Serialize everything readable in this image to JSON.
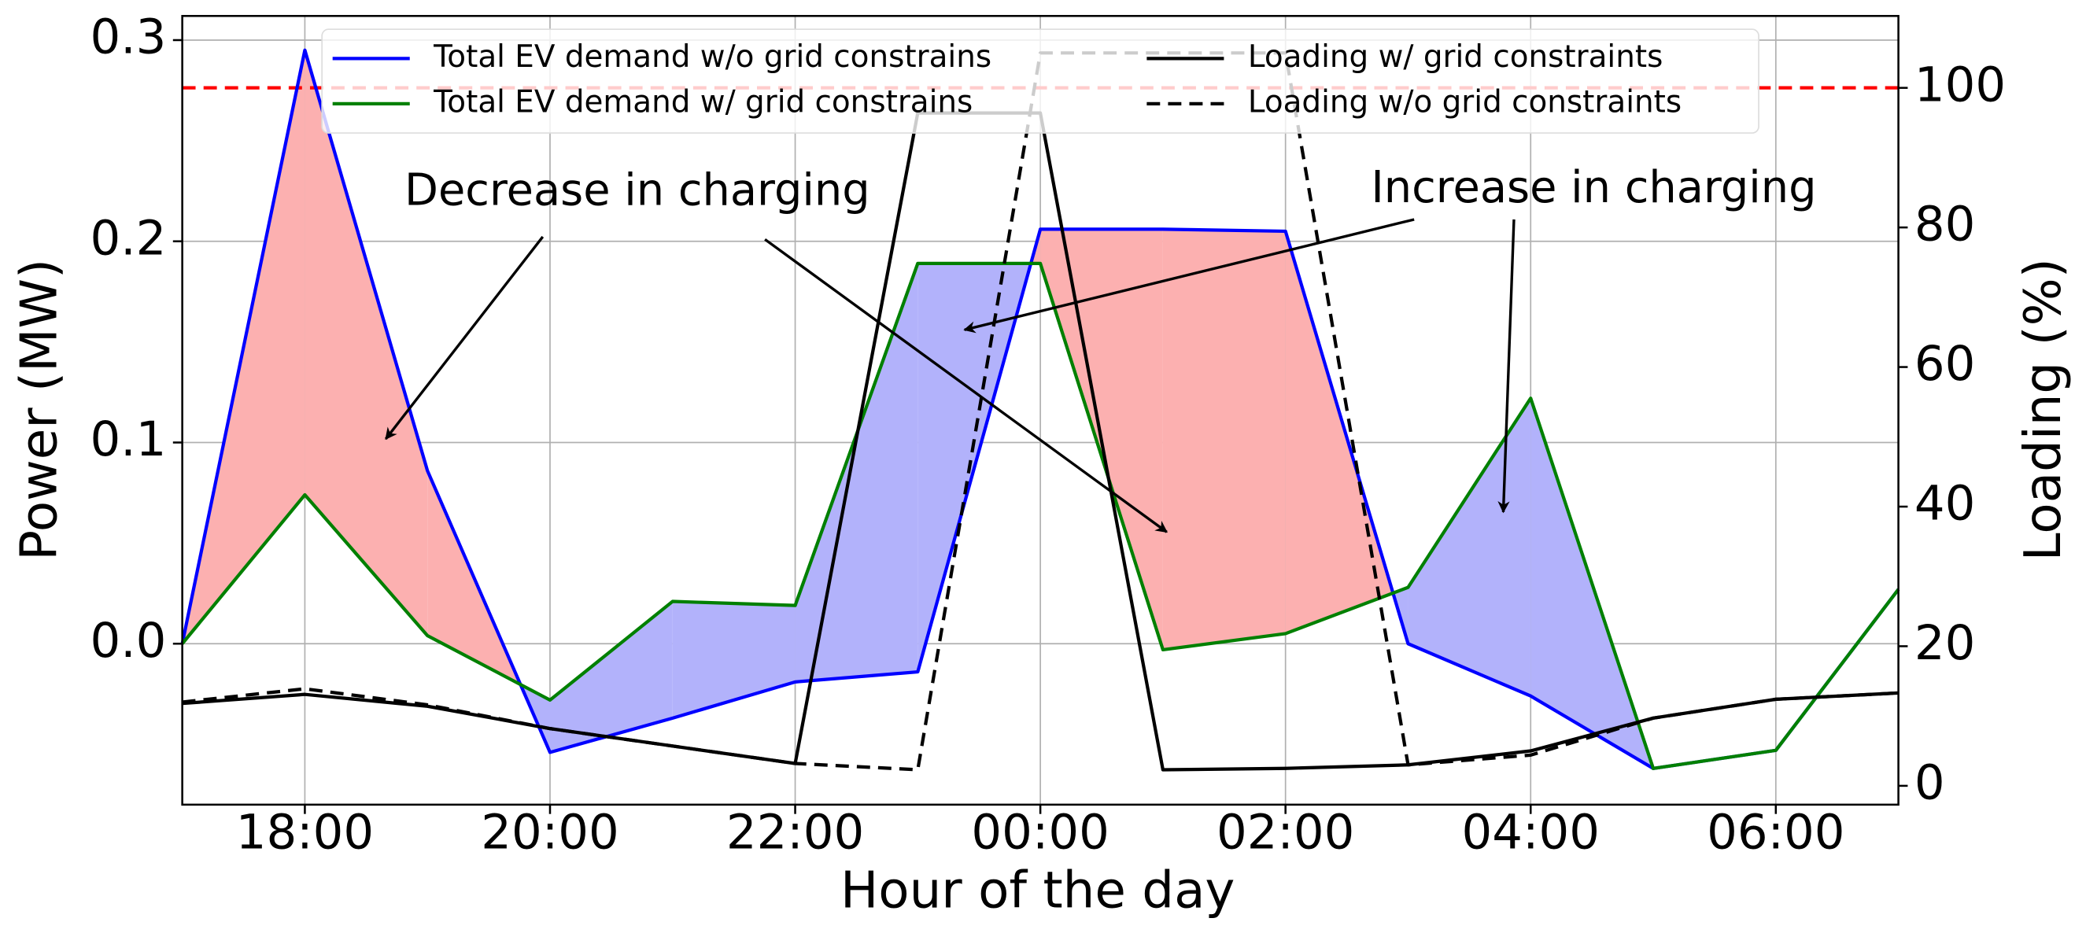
{
  "chart_data": {
    "type": "line",
    "x_label": "Hour of the day",
    "y_label": "Power (MW)",
    "y2_label": "Loading (%)",
    "x": [
      17,
      18,
      19,
      20,
      21,
      22,
      23,
      24,
      25,
      26,
      27,
      28,
      29,
      30,
      31
    ],
    "xlim": [
      17,
      31
    ],
    "xticks": [
      {
        "value": 18,
        "label": "18:00"
      },
      {
        "value": 20,
        "label": "20:00"
      },
      {
        "value": 22,
        "label": "22:00"
      },
      {
        "value": 24,
        "label": "00:00"
      },
      {
        "value": 26,
        "label": "02:00"
      },
      {
        "value": 28,
        "label": "04:00"
      },
      {
        "value": 30,
        "label": "06:00"
      }
    ],
    "ylim": [
      -0.08,
      0.312
    ],
    "yticks": [
      {
        "value": 0,
        "label": "0.0"
      },
      0.1,
      0.2,
      0.3
    ],
    "y2lim": [
      -2.7,
      110.3
    ],
    "y2ticks": [
      0,
      20,
      40,
      60,
      80,
      100
    ],
    "grid": true,
    "legend": "upper center",
    "series": [
      {
        "name": "Total EV demand w/o grid constrains",
        "color": "#0000ff",
        "style": "solid",
        "values": [
          0.0,
          0.295,
          0.086,
          -0.054,
          -0.037,
          -0.019,
          -0.014,
          0.206,
          0.206,
          0.205,
          0.0,
          -0.026,
          -0.062,
          -0.053,
          0.027
        ]
      },
      {
        "name": "Total EV demand w/ grid constrains",
        "color": "#008000",
        "style": "solid",
        "values": [
          0.0,
          0.074,
          0.004,
          -0.028,
          0.021,
          0.019,
          0.189,
          0.189,
          -0.003,
          0.005,
          0.028,
          0.122,
          -0.062,
          -0.053,
          0.027
        ]
      },
      {
        "name": "Loading w/ grid constraints",
        "color": "#000000",
        "style": "solid",
        "axis": "y2",
        "values": [
          11.8,
          13.1,
          11.4,
          8.2,
          5.7,
          3.2,
          96.4,
          96.4,
          2.3,
          2.5,
          3.0,
          5.0,
          9.7,
          12.4,
          13.3
        ]
      },
      {
        "name": "Loading w/o grid constraints",
        "color": "#000000",
        "style": "dashed",
        "axis": "y2",
        "values": [
          12.0,
          13.9,
          11.6,
          8.2,
          5.7,
          3.2,
          2.3,
          105,
          105,
          105,
          3.0,
          4.4,
          9.7,
          12.4,
          13.3
        ]
      }
    ],
    "fill_between": {
      "series": [
        0,
        1
      ],
      "above_color": "#fcb0b0",
      "below_color": "#b2b2fb"
    },
    "reference_line": {
      "value": 100,
      "axis": "y2",
      "color": "#ff0000",
      "style": "dashed"
    },
    "annotations": [
      {
        "text": "Decrease in charging"
      },
      {
        "text": "Increase in charging"
      }
    ]
  }
}
